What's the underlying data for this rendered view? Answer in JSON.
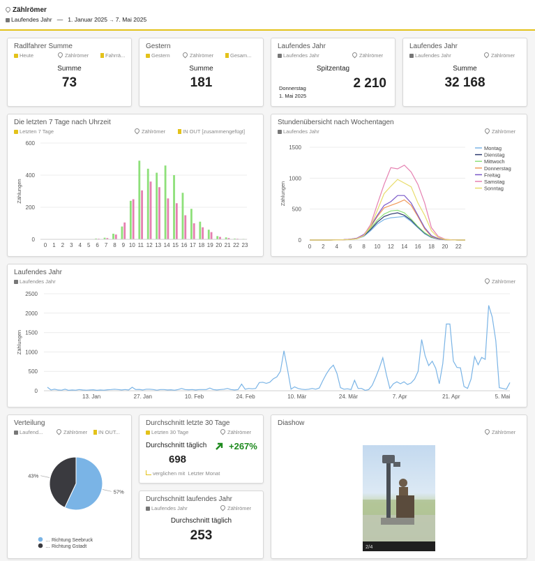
{
  "header": {
    "title": "Zählrömer",
    "range_label": "Laufendes Jahr",
    "dash": "—",
    "date_from": "1. Januar 2025",
    "arrow": "→",
    "date_to": "7. Mai 2025"
  },
  "kpis": [
    {
      "title": "Radlfahrer Summe",
      "period": "Heute",
      "location": "Zählrömer",
      "filter": "Fahrrä...",
      "label": "Summe",
      "value": "73"
    },
    {
      "title": "Gestern",
      "period": "Gestern",
      "location": "Zählrömer",
      "filter": "Gesam...",
      "label": "Summe",
      "value": "181"
    },
    {
      "title": "Laufendes Jahr",
      "period": "Laufendes Jahr",
      "location": "Zählrömer",
      "label": "Spitzentag",
      "sub1": "Donnerstag",
      "sub2": "1. Mai 2025",
      "value": "2 210"
    },
    {
      "title": "Laufendes Jahr",
      "period": "Laufendes Jahr",
      "location": "Zählrömer",
      "label": "Summe",
      "value": "32 168"
    }
  ],
  "hourly_card": {
    "title": "Die letzten 7 Tage nach Uhrzeit",
    "period": "Letzten 7 Tage",
    "location": "Zählrömer",
    "filter": "IN OUT [zusammengefügt]"
  },
  "weekday_card": {
    "title": "Stundenübersicht nach Wochentagen",
    "period": "Laufendes Jahr",
    "location": "Zählrömer"
  },
  "year_card": {
    "title": "Laufendes Jahr",
    "period": "Laufendes Jahr",
    "location": "Zählrömer"
  },
  "dist_card": {
    "title": "Verteilung",
    "period": "Laufend...",
    "location": "Zählrömer",
    "filter": "IN OUT..."
  },
  "avg30": {
    "title": "Durchschnitt letzte 30 Tage",
    "period": "Letzten 30 Tage",
    "location": "Zählrömer",
    "label": "Durchschnitt täglich",
    "value": "698",
    "change": "+267%",
    "compare_prefix": "verglichen mit",
    "compare_period": "Letzter Monat"
  },
  "avgyear": {
    "title": "Durchschnitt laufendes Jahr",
    "period": "Laufendes Jahr",
    "location": "Zählrömer",
    "label": "Durchschnitt täglich",
    "value": "253"
  },
  "slideshow": {
    "title": "Diashow",
    "location": "Zählrömer",
    "counter": "2/4"
  },
  "colors": {
    "accent": "#e3c21a",
    "green": "#1e8a1e"
  },
  "chart_data": [
    {
      "type": "bar",
      "categories": [
        "0",
        "1",
        "2",
        "3",
        "4",
        "5",
        "6",
        "7",
        "8",
        "9",
        "10",
        "11",
        "12",
        "13",
        "14",
        "15",
        "16",
        "17",
        "18",
        "19",
        "20",
        "21",
        "22",
        "23"
      ],
      "series": [
        {
          "values": [
            2,
            0,
            0,
            0,
            0,
            2,
            5,
            10,
            35,
            80,
            240,
            490,
            440,
            415,
            460,
            400,
            290,
            190,
            110,
            60,
            20,
            12,
            5,
            3
          ]
        },
        {
          "values": [
            1,
            0,
            0,
            0,
            0,
            1,
            4,
            8,
            30,
            105,
            250,
            305,
            360,
            325,
            255,
            225,
            150,
            100,
            75,
            45,
            15,
            8,
            4,
            2
          ]
        }
      ],
      "ylabel": "Zählungen",
      "ylim": [
        0,
        600
      ],
      "yticks": [
        0,
        200,
        400,
        600
      ],
      "colors": [
        "#8ee07a",
        "#e57fb0"
      ]
    },
    {
      "type": "line",
      "x": [
        0,
        1,
        2,
        3,
        4,
        5,
        6,
        7,
        8,
        9,
        10,
        11,
        12,
        13,
        14,
        15,
        16,
        17,
        18,
        19,
        20,
        21,
        22,
        23
      ],
      "series": [
        {
          "name": "Montag",
          "color": "#7ab4e6",
          "values": [
            0,
            0,
            0,
            0,
            2,
            5,
            10,
            20,
            60,
            150,
            260,
            330,
            360,
            370,
            380,
            300,
            200,
            100,
            40,
            15,
            5,
            2,
            0,
            0
          ]
        },
        {
          "name": "Dienstag",
          "color": "#2c3a6e",
          "values": [
            0,
            0,
            0,
            0,
            2,
            5,
            12,
            25,
            70,
            170,
            290,
            380,
            420,
            440,
            400,
            320,
            210,
            110,
            45,
            18,
            6,
            2,
            0,
            0
          ]
        },
        {
          "name": "Mittwoch",
          "color": "#8ee07a",
          "values": [
            0,
            0,
            0,
            0,
            2,
            6,
            12,
            25,
            80,
            190,
            320,
            420,
            470,
            480,
            440,
            340,
            220,
            120,
            50,
            20,
            6,
            2,
            0,
            0
          ]
        },
        {
          "name": "Donnerstag",
          "color": "#f29a5a",
          "values": [
            0,
            0,
            0,
            0,
            2,
            6,
            12,
            30,
            90,
            210,
            380,
            520,
            560,
            600,
            650,
            560,
            380,
            180,
            60,
            20,
            6,
            2,
            0,
            0
          ]
        },
        {
          "name": "Freitag",
          "color": "#7a58c8",
          "values": [
            0,
            0,
            0,
            0,
            2,
            6,
            14,
            30,
            90,
            220,
            400,
            560,
            620,
            720,
            720,
            600,
            400,
            200,
            70,
            25,
            8,
            2,
            0,
            0
          ]
        },
        {
          "name": "Samstag",
          "color": "#e57fb0",
          "values": [
            0,
            0,
            0,
            0,
            1,
            4,
            10,
            25,
            80,
            250,
            580,
            900,
            1170,
            1150,
            1210,
            1100,
            900,
            600,
            200,
            60,
            15,
            3,
            0,
            0
          ]
        },
        {
          "name": "Sonntag",
          "color": "#e8dc6a",
          "values": [
            0,
            0,
            0,
            0,
            1,
            3,
            8,
            20,
            70,
            220,
            480,
            750,
            870,
            980,
            920,
            860,
            600,
            400,
            150,
            40,
            10,
            2,
            0,
            0
          ]
        }
      ],
      "ylabel": "Zählungen",
      "ylim": [
        0,
        1500
      ],
      "yticks": [
        0,
        500,
        1000,
        1500
      ],
      "xticks": [
        0,
        2,
        4,
        6,
        8,
        10,
        12,
        14,
        16,
        18,
        20,
        22
      ],
      "legend": "right"
    },
    {
      "type": "line",
      "x_start": "2025-01-01",
      "x_end": "2025-05-07",
      "xticks": [
        "13. Jan",
        "27. Jan",
        "10. Feb",
        "24. Feb",
        "10. Mär",
        "24. Mär",
        "7. Apr",
        "21. Apr",
        "5. Mai"
      ],
      "xtick_dates": [
        "2025-01-13",
        "2025-01-27",
        "2025-02-10",
        "2025-02-24",
        "2025-03-10",
        "2025-03-24",
        "2025-04-07",
        "2025-04-21",
        "2025-05-05"
      ],
      "values": [
        90,
        20,
        40,
        20,
        15,
        40,
        10,
        20,
        15,
        30,
        20,
        15,
        20,
        25,
        10,
        20,
        15,
        25,
        30,
        40,
        30,
        20,
        30,
        20,
        90,
        30,
        35,
        20,
        40,
        40,
        30,
        15,
        30,
        30,
        20,
        25,
        15,
        30,
        60,
        30,
        25,
        30,
        20,
        30,
        30,
        30,
        70,
        30,
        20,
        30,
        40,
        60,
        30,
        20,
        30,
        170,
        40,
        60,
        50,
        60,
        210,
        220,
        190,
        220,
        310,
        360,
        500,
        1030,
        550,
        40,
        100,
        60,
        40,
        30,
        40,
        60,
        40,
        70,
        260,
        430,
        570,
        660,
        450,
        80,
        40,
        50,
        30,
        270,
        60,
        60,
        10,
        30,
        140,
        350,
        580,
        850,
        420,
        60,
        180,
        230,
        180,
        230,
        160,
        200,
        300,
        500,
        1320,
        900,
        650,
        760,
        580,
        180,
        700,
        1720,
        1720,
        760,
        600,
        590,
        110,
        60,
        300,
        880,
        670,
        860,
        810,
        2200,
        1900,
        1290,
        80,
        60,
        40,
        210
      ],
      "color": "#7ab4e6",
      "ylabel": "Zählungen",
      "ylim": [
        0,
        2500
      ],
      "yticks": [
        0,
        500,
        1000,
        1500,
        2000,
        2500
      ]
    },
    {
      "type": "pie",
      "slices": [
        {
          "label": "Richtung Seebruck",
          "percent": 57,
          "color": "#7ab4e6"
        },
        {
          "label": "Richtung Gstadt",
          "percent": 43,
          "color": "#3a3a3f"
        }
      ],
      "legend": "bottom"
    }
  ]
}
